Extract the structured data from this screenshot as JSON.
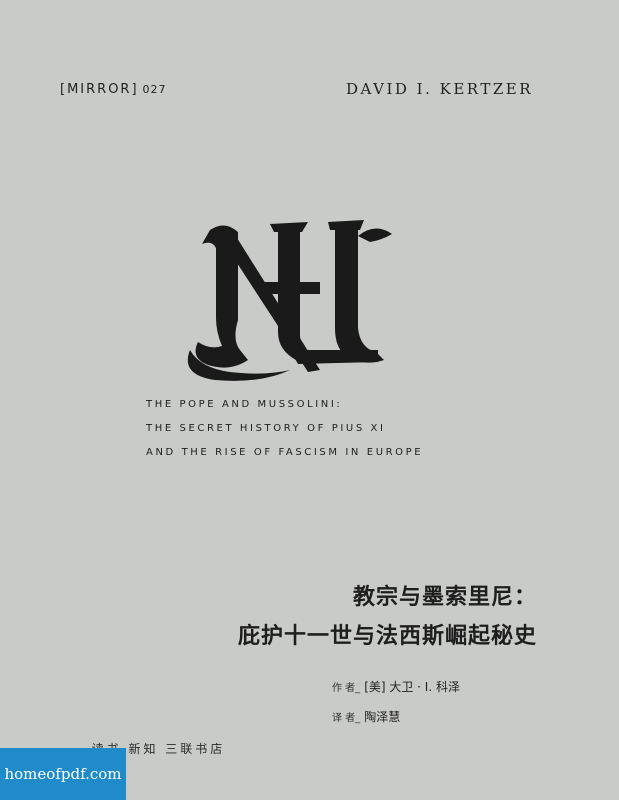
{
  "series": {
    "name": "[MIRROR]",
    "number": "027"
  },
  "author_en": "DAVID I. KERTZER",
  "emblem": {
    "icon": "blackletter-m-icon",
    "color": "#1a1a1a"
  },
  "title_en": [
    "THE POPE AND MUSSOLINI:",
    "THE SECRET HISTORY OF PIUS XI",
    "AND THE RISE OF FASCISM IN EUROPE"
  ],
  "title_zh": [
    "教宗与墨索里尼：",
    "庇护十一世与法西斯崛起秘史"
  ],
  "credits": {
    "author_role": "作 者_",
    "author_name": "[美] 大卫 · I. 科泽",
    "translator_role": "译 者_",
    "translator_name": "陶泽慧"
  },
  "publisher": "· 读书·新知 三联书店",
  "watermark": "homeofpdf.com",
  "colors": {
    "background": "#c9cbc8",
    "text": "#1e1e1e",
    "watermark_bg": "#1f8cc9"
  }
}
